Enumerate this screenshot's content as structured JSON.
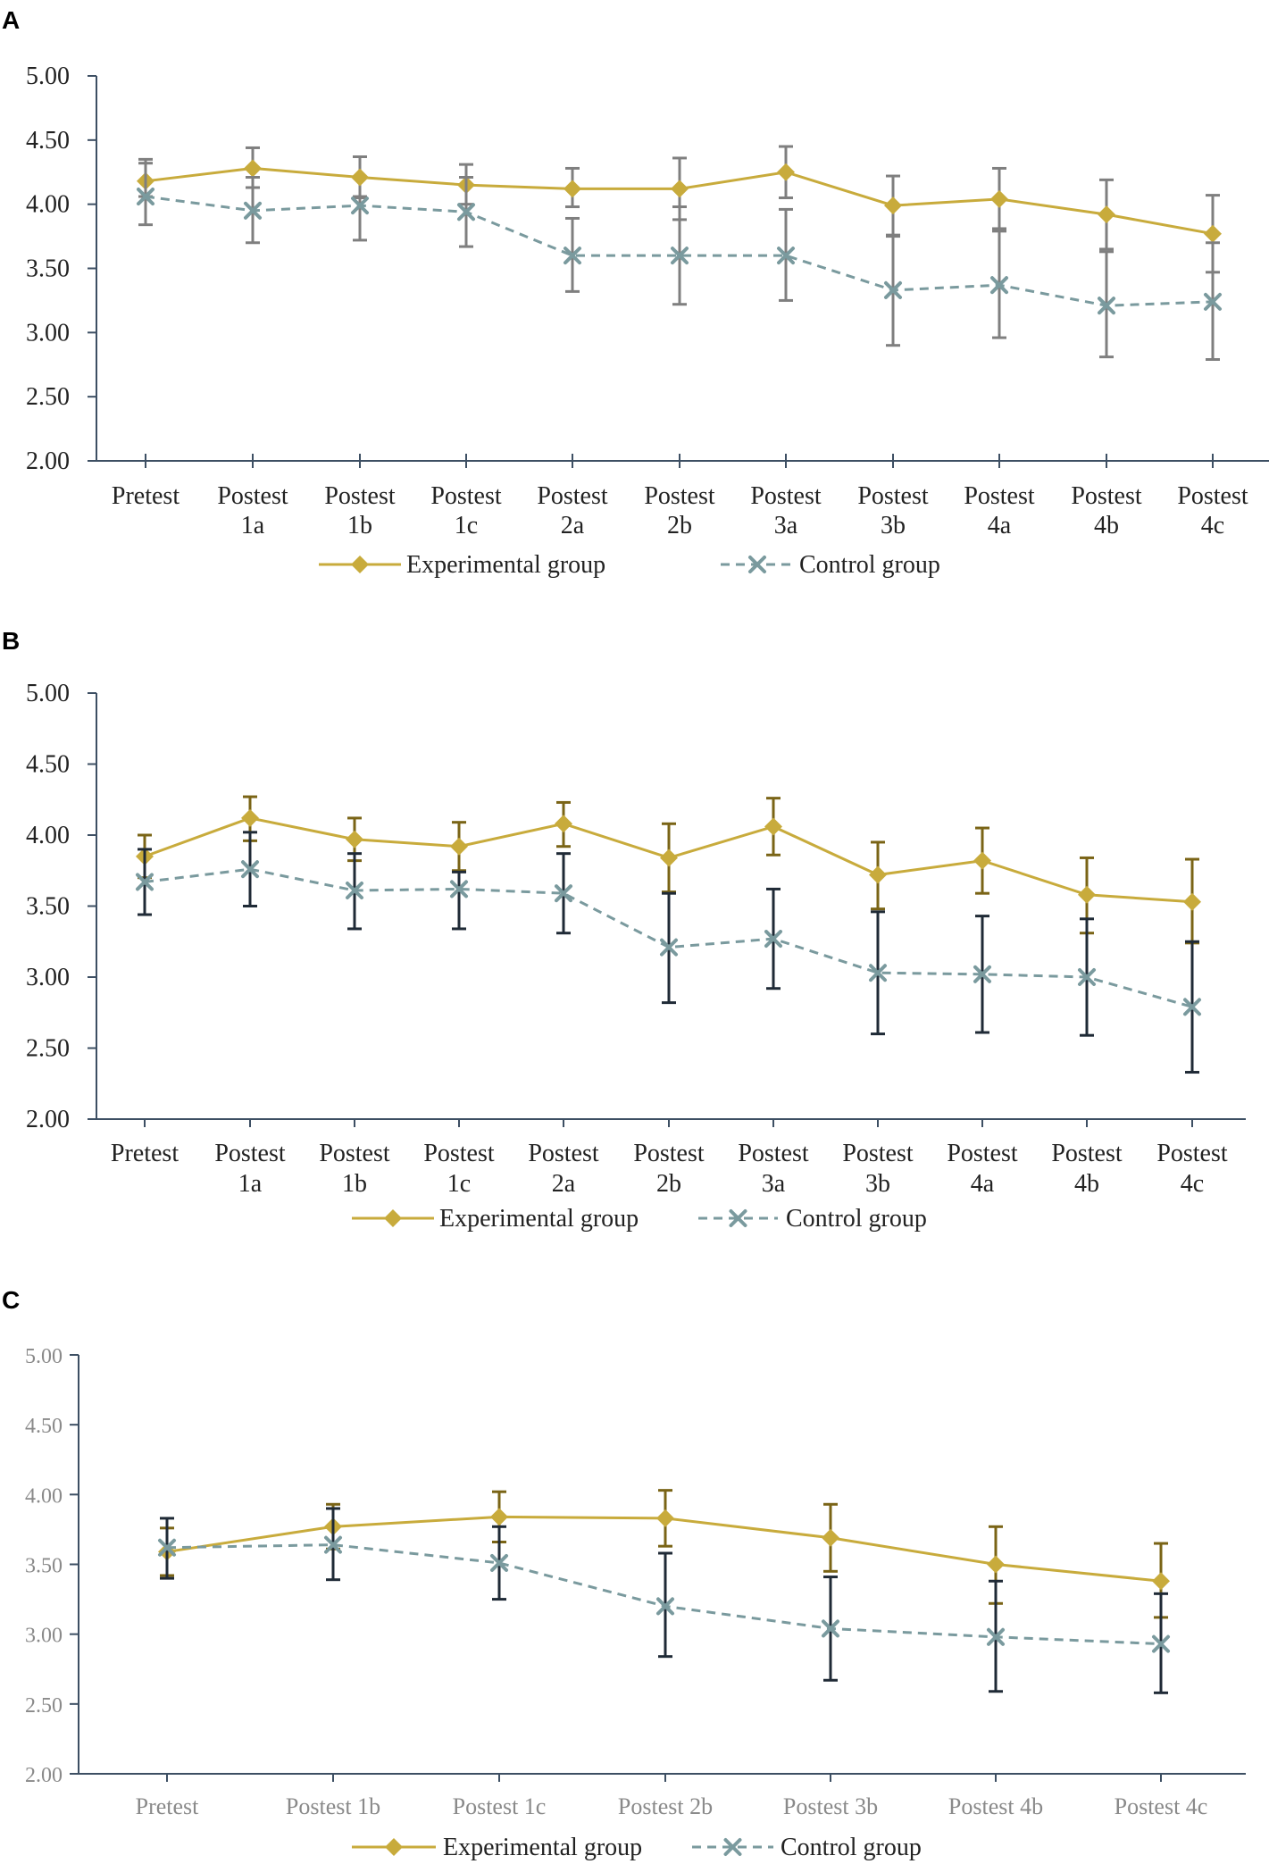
{
  "colors": {
    "experimental": "#c8ab3c",
    "control": "#7a9a9e",
    "axis": "#3d4f63",
    "err_a": "#7f7f7f",
    "err_exp_b": "#7a6416",
    "err_ctrl_b": "#1f2a36",
    "tick_c": "#8a8a8a"
  },
  "chart_data": [
    {
      "panel_label": "A",
      "type": "line",
      "categories": [
        [
          "Pretest"
        ],
        [
          "Postest",
          "1a"
        ],
        [
          "Postest",
          "1b"
        ],
        [
          "Postest",
          "1c"
        ],
        [
          "Postest",
          "2a"
        ],
        [
          "Postest",
          "2b"
        ],
        [
          "Postest",
          "3a"
        ],
        [
          "Postest",
          "3b"
        ],
        [
          "Postest",
          "4a"
        ],
        [
          "Postest",
          "4b"
        ],
        [
          "Postest",
          "4c"
        ]
      ],
      "ylim": [
        2.0,
        5.0
      ],
      "yticks": [
        "2.00",
        "2.50",
        "3.00",
        "3.50",
        "4.00",
        "4.50",
        "5.00"
      ],
      "series": [
        {
          "name": "Experimental group",
          "marker": "diamond",
          "dashed": false,
          "values": [
            4.18,
            4.28,
            4.21,
            4.15,
            4.12,
            4.12,
            4.25,
            3.99,
            4.04,
            3.92,
            3.77
          ],
          "err_low": [
            4.06,
            4.13,
            4.06,
            4.0,
            3.98,
            3.88,
            4.05,
            3.76,
            3.81,
            3.65,
            3.47
          ],
          "err_high": [
            4.32,
            4.44,
            4.37,
            4.31,
            4.28,
            4.36,
            4.45,
            4.22,
            4.28,
            4.19,
            4.07
          ]
        },
        {
          "name": "Control group",
          "marker": "x",
          "dashed": true,
          "values": [
            4.06,
            3.95,
            3.99,
            3.94,
            3.6,
            3.6,
            3.6,
            3.33,
            3.37,
            3.21,
            3.24
          ],
          "err_low": [
            3.84,
            3.7,
            3.72,
            3.67,
            3.32,
            3.22,
            3.25,
            2.9,
            2.96,
            2.81,
            2.79
          ],
          "err_high": [
            4.35,
            4.21,
            4.05,
            4.21,
            3.89,
            3.98,
            3.96,
            3.75,
            3.79,
            3.63,
            3.7
          ]
        }
      ]
    },
    {
      "panel_label": "B",
      "type": "line",
      "categories": [
        [
          "Pretest"
        ],
        [
          "Postest",
          "1a"
        ],
        [
          "Postest",
          "1b"
        ],
        [
          "Postest",
          "1c"
        ],
        [
          "Postest",
          "2a"
        ],
        [
          "Postest",
          "2b"
        ],
        [
          "Postest",
          "3a"
        ],
        [
          "Postest",
          "3b"
        ],
        [
          "Postest",
          "4a"
        ],
        [
          "Postest",
          "4b"
        ],
        [
          "Postest",
          "4c"
        ]
      ],
      "ylim": [
        2.0,
        5.0
      ],
      "yticks": [
        "2.00",
        "2.50",
        "3.00",
        "3.50",
        "4.00",
        "4.50",
        "5.00"
      ],
      "series": [
        {
          "name": "Experimental group",
          "marker": "diamond",
          "dashed": false,
          "values": [
            3.85,
            4.12,
            3.97,
            3.92,
            4.08,
            3.84,
            4.06,
            3.72,
            3.82,
            3.58,
            3.53
          ],
          "err_low": [
            3.7,
            3.96,
            3.82,
            3.75,
            3.92,
            3.6,
            3.86,
            3.48,
            3.59,
            3.31,
            3.24
          ],
          "err_high": [
            4.0,
            4.27,
            4.12,
            4.09,
            4.23,
            4.08,
            4.26,
            3.95,
            4.05,
            3.84,
            3.83
          ]
        },
        {
          "name": "Control group",
          "marker": "x",
          "dashed": true,
          "values": [
            3.67,
            3.76,
            3.61,
            3.62,
            3.59,
            3.21,
            3.27,
            3.03,
            3.02,
            3.0,
            2.79
          ],
          "err_low": [
            3.44,
            3.5,
            3.34,
            3.34,
            3.31,
            2.82,
            2.92,
            2.6,
            2.61,
            2.59,
            2.33
          ],
          "err_high": [
            3.9,
            4.02,
            3.87,
            3.74,
            3.87,
            3.59,
            3.62,
            3.46,
            3.43,
            3.41,
            3.25
          ]
        }
      ]
    },
    {
      "panel_label": "C",
      "type": "line",
      "categories": [
        [
          "Pretest"
        ],
        [
          "Postest 1b"
        ],
        [
          "Postest 1c"
        ],
        [
          "Postest 2b"
        ],
        [
          "Postest 3b"
        ],
        [
          "Postest 4b"
        ],
        [
          "Postest 4c"
        ]
      ],
      "ylim": [
        2.0,
        5.0
      ],
      "yticks": [
        "2.00",
        "2.50",
        "3.00",
        "3.50",
        "4.00",
        "4.50",
        "5.00"
      ],
      "series": [
        {
          "name": "Experimental group",
          "marker": "diamond",
          "dashed": false,
          "values": [
            3.59,
            3.77,
            3.84,
            3.83,
            3.69,
            3.5,
            3.38
          ],
          "err_low": [
            3.42,
            3.61,
            3.66,
            3.63,
            3.45,
            3.22,
            3.12
          ],
          "err_high": [
            3.76,
            3.93,
            4.02,
            4.03,
            3.93,
            3.77,
            3.65
          ]
        },
        {
          "name": "Control group",
          "marker": "x",
          "dashed": true,
          "values": [
            3.62,
            3.64,
            3.51,
            3.2,
            3.04,
            2.98,
            2.93
          ],
          "err_low": [
            3.4,
            3.39,
            3.25,
            2.84,
            2.67,
            2.59,
            2.58
          ],
          "err_high": [
            3.83,
            3.9,
            3.77,
            3.58,
            3.41,
            3.38,
            3.29
          ]
        }
      ]
    }
  ]
}
